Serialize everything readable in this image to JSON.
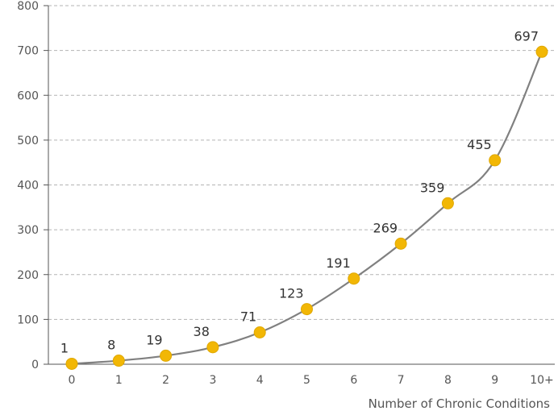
{
  "chart_data": {
    "type": "line",
    "title": "",
    "xlabel": "Number of Chronic Conditions",
    "ylabel": "",
    "categories": [
      "0",
      "1",
      "2",
      "3",
      "4",
      "5",
      "6",
      "7",
      "8",
      "9",
      "10+"
    ],
    "values": [
      1,
      8,
      19,
      38,
      71,
      123,
      191,
      269,
      359,
      455,
      697
    ],
    "data_labels": [
      "1",
      "8",
      "19",
      "38",
      "71",
      "123",
      "191",
      "269",
      "359",
      "455",
      "697"
    ],
    "ylim": [
      0,
      800
    ],
    "yticks": [
      0,
      100,
      200,
      300,
      400,
      500,
      600,
      700,
      800
    ],
    "ytick_labels": [
      "0",
      "100",
      "200",
      "300",
      "400",
      "500",
      "600",
      "700",
      "800"
    ],
    "grid": "horizontal dashed",
    "colors": {
      "line": "#808080",
      "marker": "#f2b705",
      "grid": "#b3b3b3",
      "axis": "#555555"
    }
  }
}
